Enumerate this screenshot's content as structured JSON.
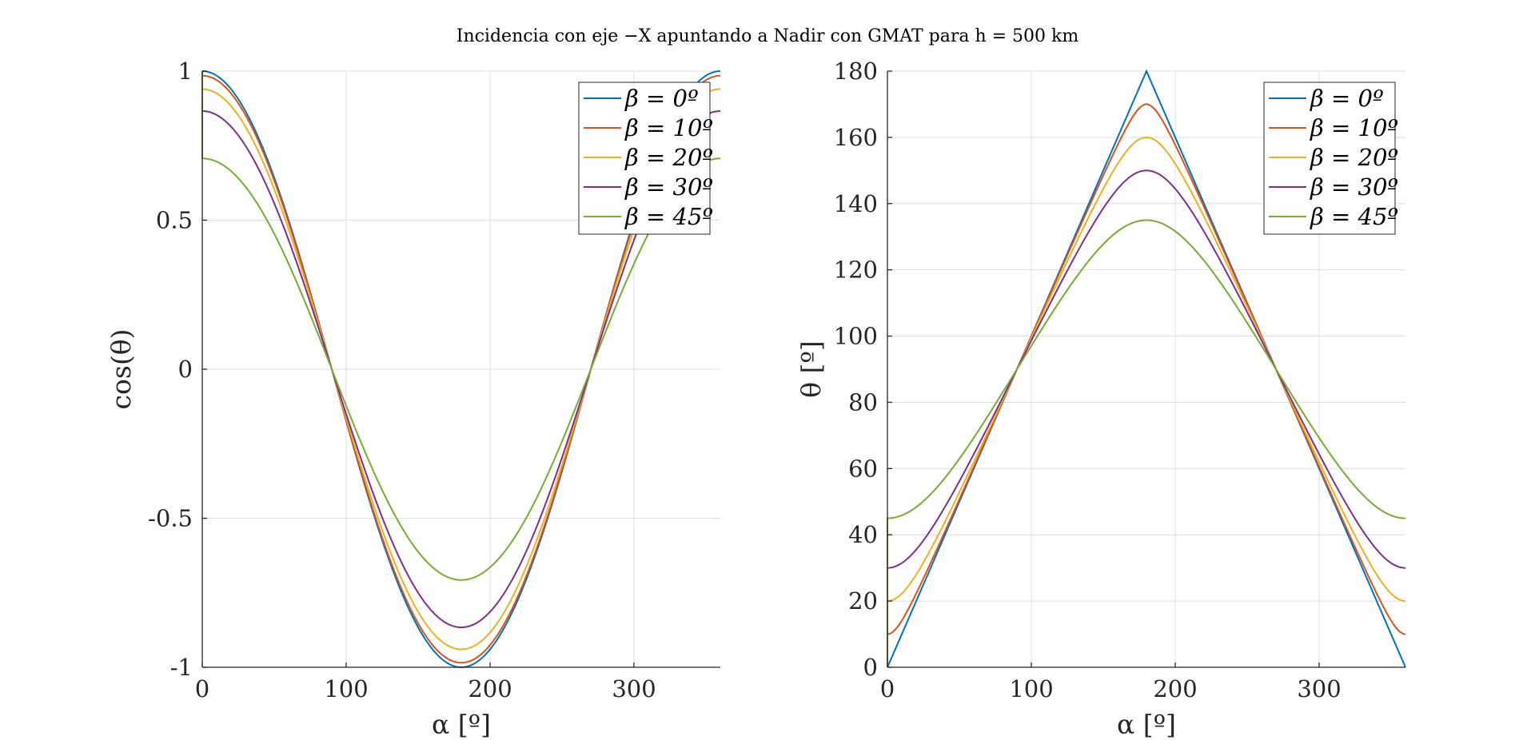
{
  "figure_title": "Incidencia con eje −X apuntando a Nadir con GMAT para h = 500 km",
  "chart_data": [
    {
      "type": "line",
      "title": "",
      "xlabel": "α [º]",
      "ylabel": "cos(θ)",
      "xlim": [
        0,
        360
      ],
      "ylim": [
        -1,
        1
      ],
      "xticks": [
        0,
        100,
        200,
        300
      ],
      "yticks": [
        -1,
        -0.5,
        0,
        0.5,
        1
      ],
      "ytick_labels": [
        "-1",
        "-0.5",
        "0",
        "0.5",
        "1"
      ],
      "grid": true,
      "legend_position": "top-right",
      "x": [
        0,
        20,
        40,
        60,
        80,
        100,
        120,
        140,
        160,
        180,
        200,
        220,
        240,
        260,
        280,
        300,
        320,
        340,
        360
      ],
      "series": [
        {
          "name": "β = 0º",
          "color": "#0072BD",
          "values": [
            1.0,
            0.94,
            0.77,
            0.5,
            0.17,
            -0.17,
            -0.5,
            -0.77,
            -0.94,
            -1.0,
            -0.94,
            -0.77,
            -0.5,
            -0.17,
            0.17,
            0.5,
            0.77,
            0.94,
            1.0
          ]
        },
        {
          "name": "β = 10º",
          "color": "#D95319",
          "values": [
            0.98,
            0.93,
            0.76,
            0.5,
            0.17,
            -0.17,
            -0.5,
            -0.76,
            -0.93,
            -0.98,
            -0.93,
            -0.76,
            -0.5,
            -0.17,
            0.17,
            0.5,
            0.76,
            0.93,
            0.98
          ]
        },
        {
          "name": "β = 20º",
          "color": "#EDB120",
          "values": [
            0.94,
            0.88,
            0.72,
            0.47,
            0.16,
            -0.16,
            -0.47,
            -0.72,
            -0.88,
            -0.94,
            -0.88,
            -0.72,
            -0.47,
            -0.16,
            0.16,
            0.47,
            0.72,
            0.88,
            0.94
          ]
        },
        {
          "name": "β = 30º",
          "color": "#7E2F8E",
          "values": [
            0.87,
            0.81,
            0.66,
            0.43,
            0.15,
            -0.15,
            -0.43,
            -0.66,
            -0.81,
            -0.87,
            -0.81,
            -0.66,
            -0.43,
            -0.15,
            0.15,
            0.43,
            0.66,
            0.81,
            0.87
          ]
        },
        {
          "name": "β = 45º",
          "color": "#77AC30",
          "values": [
            0.71,
            0.66,
            0.54,
            0.35,
            0.12,
            -0.12,
            -0.35,
            -0.54,
            -0.66,
            -0.71,
            -0.66,
            -0.54,
            -0.35,
            -0.12,
            0.12,
            0.35,
            0.54,
            0.66,
            0.71
          ]
        }
      ]
    },
    {
      "type": "line",
      "title": "",
      "xlabel": "α [º]",
      "ylabel": "θ [º]",
      "xlim": [
        0,
        360
      ],
      "ylim": [
        0,
        180
      ],
      "xticks": [
        0,
        100,
        200,
        300
      ],
      "yticks": [
        0,
        20,
        40,
        60,
        80,
        100,
        120,
        140,
        160,
        180
      ],
      "ytick_labels": [
        "0",
        "20",
        "40",
        "60",
        "80",
        "100",
        "120",
        "140",
        "160",
        "180"
      ],
      "grid": true,
      "legend_position": "top-right",
      "x": [
        0,
        20,
        40,
        60,
        80,
        100,
        120,
        140,
        160,
        180,
        200,
        220,
        240,
        260,
        280,
        300,
        320,
        340,
        360
      ],
      "series": [
        {
          "name": "β = 0º",
          "color": "#0072BD",
          "values": [
            0,
            20,
            40,
            60,
            80,
            100,
            120,
            140,
            160,
            180,
            160,
            140,
            120,
            100,
            80,
            60,
            40,
            20,
            0
          ]
        },
        {
          "name": "β = 10º",
          "color": "#D95319",
          "values": [
            10,
            22.2,
            40.6,
            60.2,
            80.0,
            99.9,
            119.6,
            139.3,
            158.9,
            170,
            158.9,
            139.3,
            119.6,
            99.9,
            80.0,
            60.2,
            40.6,
            22.2,
            10
          ]
        },
        {
          "name": "β = 20º",
          "color": "#EDB120",
          "values": [
            20,
            27.8,
            43.9,
            61.8,
            80.6,
            99.4,
            118.2,
            136.1,
            152.2,
            160,
            152.2,
            136.1,
            118.2,
            99.4,
            80.6,
            61.8,
            43.9,
            27.8,
            20
          ]
        },
        {
          "name": "β = 30º",
          "color": "#7E2F8E",
          "values": [
            30,
            35.5,
            48.6,
            64.5,
            81.3,
            98.6,
            115.7,
            131.6,
            144.5,
            150,
            144.5,
            131.6,
            115.7,
            98.6,
            81.3,
            64.5,
            48.6,
            35.5,
            30
          ]
        },
        {
          "name": "β = 45º",
          "color": "#77AC30",
          "values": [
            45,
            48.4,
            57.3,
            69.3,
            83.0,
            97.0,
            110.7,
            122.7,
            131.6,
            135,
            131.6,
            122.7,
            110.7,
            97.0,
            83.0,
            69.3,
            57.3,
            48.4,
            45
          ]
        }
      ]
    }
  ]
}
